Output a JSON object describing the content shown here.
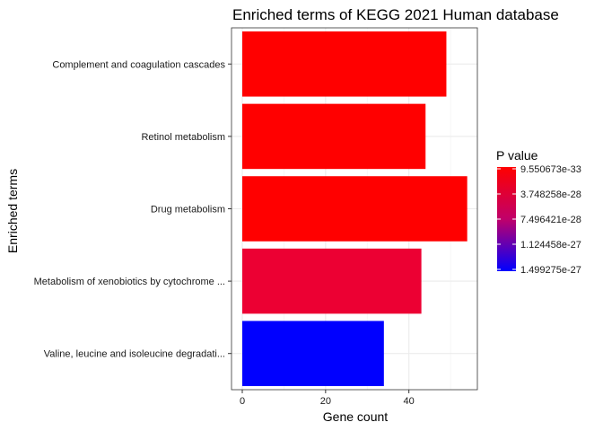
{
  "chart_data": {
    "type": "bar",
    "orientation": "horizontal",
    "title": "Enriched terms of KEGG 2021 Human database",
    "xlabel": "Gene count",
    "ylabel": "Enriched terms",
    "xlim": [
      0,
      56
    ],
    "xticks": [
      0,
      20,
      40
    ],
    "grid": true,
    "categories": [
      "Complement and coagulation cascades",
      "Retinol metabolism",
      "Drug metabolism",
      "Metabolism of xenobiotics by cytochrome ...",
      "Valine, leucine and isoleucine degradati..."
    ],
    "values": [
      49,
      44,
      54,
      43,
      34
    ],
    "bar_colors": [
      "#ff0000",
      "#ff0000",
      "#ff0000",
      "#ec0033",
      "#0000ff"
    ],
    "legend": {
      "title": "P value",
      "placement": "right",
      "labels": [
        "9.550673e-33",
        "3.748258e-28",
        "7.496421e-28",
        "1.124458e-27",
        "1.499275e-27"
      ],
      "color_high": "#ff0000",
      "color_low": "#0000ff"
    }
  }
}
